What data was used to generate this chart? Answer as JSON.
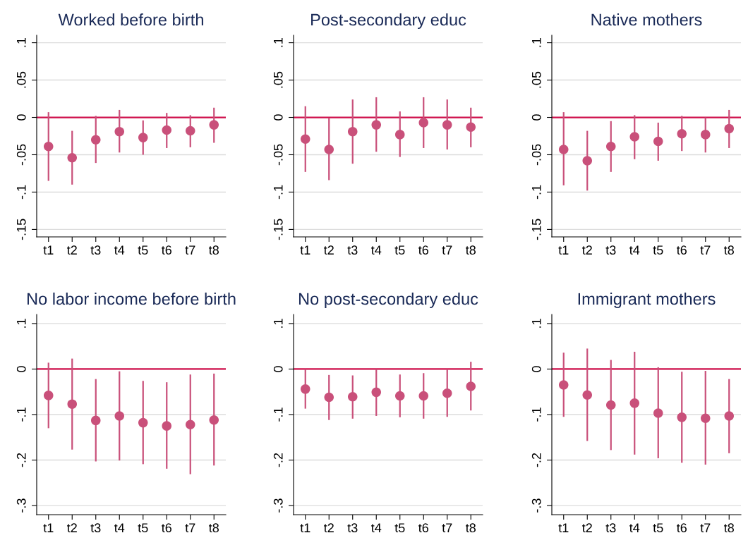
{
  "chart_data": [
    {
      "type": "scatter",
      "title": "Worked before birth",
      "categories": [
        "t1",
        "t2",
        "t3",
        "t4",
        "t5",
        "t6",
        "t7",
        "t8"
      ],
      "marker": "circle",
      "grid": "y",
      "ylim": [
        -0.16,
        0.11
      ],
      "yticks": [
        {
          "value": -0.15,
          "label": "-.15"
        },
        {
          "value": -0.1,
          "label": "-.1"
        },
        {
          "value": -0.05,
          "label": "-.05"
        },
        0,
        {
          "value": 0.05,
          "label": ".05"
        },
        {
          "value": 0.1,
          "label": ".1"
        }
      ],
      "ref_lines": [
        {
          "axis": "y",
          "value": 0,
          "color": "#d0104c"
        }
      ],
      "series": [
        {
          "color": "#c9507a",
          "values": [
            -0.039,
            -0.054,
            -0.03,
            -0.019,
            -0.027,
            -0.017,
            -0.018,
            -0.01
          ],
          "errors": [
            [
              -0.085,
              0.007
            ],
            [
              -0.09,
              -0.018
            ],
            [
              -0.061,
              0.002
            ],
            [
              -0.047,
              0.01
            ],
            [
              -0.05,
              -0.004
            ],
            [
              -0.041,
              0.006
            ],
            [
              -0.04,
              0.003
            ],
            [
              -0.034,
              0.013
            ]
          ]
        }
      ]
    },
    {
      "type": "scatter",
      "title": "Post-secondary educ",
      "categories": [
        "t1",
        "t2",
        "t3",
        "t4",
        "t5",
        "t6",
        "t7",
        "t8"
      ],
      "marker": "circle",
      "grid": "y",
      "ylim": [
        -0.16,
        0.11
      ],
      "yticks": [
        {
          "value": -0.15,
          "label": "-.15"
        },
        {
          "value": -0.1,
          "label": "-.1"
        },
        {
          "value": -0.05,
          "label": "-.05"
        },
        0,
        {
          "value": 0.05,
          "label": ".05"
        },
        {
          "value": 0.1,
          "label": ".1"
        }
      ],
      "ref_lines": [
        {
          "axis": "y",
          "value": 0,
          "color": "#d0104c"
        }
      ],
      "series": [
        {
          "color": "#c9507a",
          "values": [
            -0.029,
            -0.043,
            -0.019,
            -0.01,
            -0.023,
            -0.007,
            -0.01,
            -0.013
          ],
          "errors": [
            [
              -0.073,
              0.015
            ],
            [
              -0.084,
              -0.001
            ],
            [
              -0.062,
              0.024
            ],
            [
              -0.046,
              0.027
            ],
            [
              -0.053,
              0.008
            ],
            [
              -0.041,
              0.027
            ],
            [
              -0.043,
              0.024
            ],
            [
              -0.04,
              0.013
            ]
          ]
        }
      ]
    },
    {
      "type": "scatter",
      "title": "Native mothers",
      "categories": [
        "t1",
        "t2",
        "t3",
        "t4",
        "t5",
        "t6",
        "t7",
        "t8"
      ],
      "marker": "circle",
      "grid": "y",
      "ylim": [
        -0.16,
        0.11
      ],
      "yticks": [
        {
          "value": -0.15,
          "label": "-.15"
        },
        {
          "value": -0.1,
          "label": "-.1"
        },
        {
          "value": -0.05,
          "label": "-.05"
        },
        0,
        {
          "value": 0.05,
          "label": ".05"
        },
        {
          "value": 0.1,
          "label": ".1"
        }
      ],
      "ref_lines": [
        {
          "axis": "y",
          "value": 0,
          "color": "#d0104c"
        }
      ],
      "series": [
        {
          "color": "#c9507a",
          "values": [
            -0.043,
            -0.058,
            -0.039,
            -0.026,
            -0.032,
            -0.022,
            -0.023,
            -0.015
          ],
          "errors": [
            [
              -0.091,
              0.007
            ],
            [
              -0.098,
              -0.018
            ],
            [
              -0.073,
              -0.005
            ],
            [
              -0.056,
              0.003
            ],
            [
              -0.058,
              -0.007
            ],
            [
              -0.045,
              0.002
            ],
            [
              -0.047,
              0.0
            ],
            [
              -0.041,
              0.01
            ]
          ]
        }
      ]
    },
    {
      "type": "scatter",
      "title": "No labor income before birth",
      "categories": [
        "t1",
        "t2",
        "t3",
        "t4",
        "t5",
        "t6",
        "t7",
        "t8"
      ],
      "marker": "circle",
      "grid": "y",
      "ylim": [
        -0.32,
        0.12
      ],
      "yticks": [
        {
          "value": -0.3,
          "label": "-.3"
        },
        {
          "value": -0.2,
          "label": "-.2"
        },
        {
          "value": -0.1,
          "label": "-.1"
        },
        0,
        {
          "value": 0.1,
          "label": ".1"
        }
      ],
      "ref_lines": [
        {
          "axis": "y",
          "value": 0,
          "color": "#d0104c"
        }
      ],
      "series": [
        {
          "color": "#c9507a",
          "values": [
            -0.058,
            -0.077,
            -0.113,
            -0.103,
            -0.118,
            -0.125,
            -0.122,
            -0.112
          ],
          "errors": [
            [
              -0.13,
              0.014
            ],
            [
              -0.177,
              0.023
            ],
            [
              -0.203,
              -0.022
            ],
            [
              -0.201,
              -0.005
            ],
            [
              -0.209,
              -0.026
            ],
            [
              -0.219,
              -0.029
            ],
            [
              -0.231,
              -0.012
            ],
            [
              -0.212,
              -0.01
            ]
          ]
        }
      ]
    },
    {
      "type": "scatter",
      "title": "No post-secondary educ",
      "categories": [
        "t1",
        "t2",
        "t3",
        "t4",
        "t5",
        "t6",
        "t7",
        "t8"
      ],
      "marker": "circle",
      "grid": "y",
      "ylim": [
        -0.32,
        0.12
      ],
      "yticks": [
        {
          "value": -0.3,
          "label": "-.3"
        },
        {
          "value": -0.2,
          "label": "-.2"
        },
        {
          "value": -0.1,
          "label": "-.1"
        },
        0,
        {
          "value": 0.1,
          "label": ".1"
        }
      ],
      "ref_lines": [
        {
          "axis": "y",
          "value": 0,
          "color": "#d0104c"
        }
      ],
      "series": [
        {
          "color": "#c9507a",
          "values": [
            -0.044,
            -0.062,
            -0.061,
            -0.051,
            -0.059,
            -0.059,
            -0.053,
            -0.038
          ],
          "errors": [
            [
              -0.087,
              0.0
            ],
            [
              -0.112,
              -0.013
            ],
            [
              -0.109,
              -0.014
            ],
            [
              -0.103,
              0.0
            ],
            [
              -0.106,
              -0.012
            ],
            [
              -0.109,
              -0.009
            ],
            [
              -0.105,
              0.0
            ],
            [
              -0.091,
              0.016
            ]
          ]
        }
      ]
    },
    {
      "type": "scatter",
      "title": "Immigrant mothers",
      "categories": [
        "t1",
        "t2",
        "t3",
        "t4",
        "t5",
        "t6",
        "t7",
        "t8"
      ],
      "marker": "circle",
      "grid": "y",
      "ylim": [
        -0.32,
        0.12
      ],
      "yticks": [
        {
          "value": -0.3,
          "label": "-.3"
        },
        {
          "value": -0.2,
          "label": "-.2"
        },
        {
          "value": -0.1,
          "label": "-.1"
        },
        0,
        {
          "value": 0.1,
          "label": ".1"
        }
      ],
      "ref_lines": [
        {
          "axis": "y",
          "value": 0,
          "color": "#d0104c"
        }
      ],
      "series": [
        {
          "color": "#c9507a",
          "values": [
            -0.035,
            -0.057,
            -0.079,
            -0.075,
            -0.097,
            -0.106,
            -0.108,
            -0.103
          ],
          "errors": [
            [
              -0.105,
              0.036
            ],
            [
              -0.158,
              0.045
            ],
            [
              -0.178,
              0.02
            ],
            [
              -0.188,
              0.038
            ],
            [
              -0.196,
              0.004
            ],
            [
              -0.206,
              -0.006
            ],
            [
              -0.21,
              -0.004
            ],
            [
              -0.185,
              -0.022
            ]
          ]
        }
      ]
    }
  ]
}
